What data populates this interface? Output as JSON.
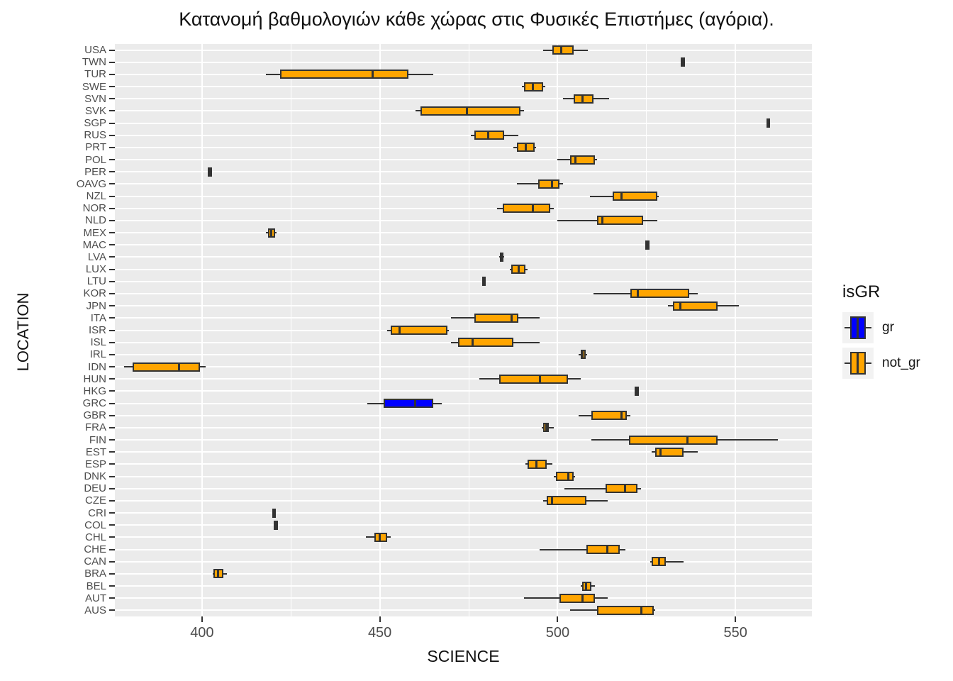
{
  "title": "Κατανομή βαθμολογιών κάθε χώρας στις Φυσικές Επιστήμες (αγόρια).",
  "axes": {
    "x_label": "SCIENCE",
    "y_label": "LOCATION"
  },
  "legend": {
    "title": "isGR",
    "items": [
      {
        "label": "gr",
        "color": "#0000FF"
      },
      {
        "label": "not_gr",
        "color": "#FFA500"
      }
    ]
  },
  "colors": {
    "panel_bg": "#EBEBEB",
    "grid": "#FFFFFF",
    "outline": "#333333",
    "gr": "#0000FF",
    "not_gr": "#FFA500",
    "tick_text": "#4D4D4D"
  },
  "chart_data": {
    "type": "boxplot",
    "orientation": "horizontal",
    "title": "Κατανομή βαθμολογιών κάθε χώρας στις Φυσικές Επιστήμες (αγόρια).",
    "xlabel": "SCIENCE",
    "ylabel": "LOCATION",
    "xlim": [
      375.5,
      571.5
    ],
    "x_ticks": [
      400,
      450,
      500,
      550
    ],
    "x_minor_ticks": [
      425,
      475,
      525
    ],
    "grid": true,
    "legend_position": "right",
    "series_by": "isGR",
    "rows": [
      {
        "location": "USA",
        "group": "not_gr",
        "min": 496,
        "q1": 498.5,
        "median": 501,
        "q3": 504.5,
        "max": 508.5
      },
      {
        "location": "TWN",
        "group": "not_gr",
        "min": 535,
        "q1": 535,
        "median": 535,
        "q3": 535,
        "max": 535
      },
      {
        "location": "TUR",
        "group": "not_gr",
        "min": 418,
        "q1": 422,
        "median": 448,
        "q3": 458,
        "max": 465
      },
      {
        "location": "SWE",
        "group": "not_gr",
        "min": 490,
        "q1": 490.5,
        "median": 493,
        "q3": 496,
        "max": 496.5
      },
      {
        "location": "SVN",
        "group": "not_gr",
        "min": 501.5,
        "q1": 504.5,
        "median": 507,
        "q3": 510,
        "max": 514.5
      },
      {
        "location": "SVK",
        "group": "not_gr",
        "min": 460,
        "q1": 461.5,
        "median": 474.5,
        "q3": 489.5,
        "max": 490.5
      },
      {
        "location": "SGP",
        "group": "not_gr",
        "min": 559,
        "q1": 559,
        "median": 559,
        "q3": 559,
        "max": 559
      },
      {
        "location": "RUS",
        "group": "not_gr",
        "min": 475.5,
        "q1": 476.5,
        "median": 480.5,
        "q3": 485,
        "max": 489
      },
      {
        "location": "PRT",
        "group": "not_gr",
        "min": 487.5,
        "q1": 488.5,
        "median": 491,
        "q3": 493.5,
        "max": 494
      },
      {
        "location": "POL",
        "group": "not_gr",
        "min": 500,
        "q1": 503.5,
        "median": 505,
        "q3": 510.5,
        "max": 511
      },
      {
        "location": "PER",
        "group": "not_gr",
        "min": 402,
        "q1": 402,
        "median": 402,
        "q3": 402,
        "max": 402
      },
      {
        "location": "OAVG",
        "group": "not_gr",
        "min": 488.5,
        "q1": 494.5,
        "median": 498.5,
        "q3": 500.5,
        "max": 501.5
      },
      {
        "location": "NZL",
        "group": "not_gr",
        "min": 509,
        "q1": 515.5,
        "median": 518,
        "q3": 528,
        "max": 528.5
      },
      {
        "location": "NOR",
        "group": "not_gr",
        "min": 483,
        "q1": 484.5,
        "median": 493,
        "q3": 498,
        "max": 499
      },
      {
        "location": "NLD",
        "group": "not_gr",
        "min": 500,
        "q1": 511,
        "median": 512.5,
        "q3": 524,
        "max": 528
      },
      {
        "location": "MEX",
        "group": "not_gr",
        "min": 418,
        "q1": 418.5,
        "median": 419.5,
        "q3": 420.5,
        "max": 421
      },
      {
        "location": "MAC",
        "group": "not_gr",
        "min": 525,
        "q1": 525,
        "median": 525,
        "q3": 525,
        "max": 525
      },
      {
        "location": "LVA",
        "group": "not_gr",
        "min": 483.5,
        "q1": 483.7,
        "median": 484.2,
        "q3": 484.7,
        "max": 485
      },
      {
        "location": "LUX",
        "group": "not_gr",
        "min": 486.5,
        "q1": 487,
        "median": 489,
        "q3": 491,
        "max": 491.5
      },
      {
        "location": "LTU",
        "group": "not_gr",
        "min": 479,
        "q1": 479,
        "median": 479,
        "q3": 479,
        "max": 479
      },
      {
        "location": "KOR",
        "group": "not_gr",
        "min": 510,
        "q1": 520.5,
        "median": 522.5,
        "q3": 537,
        "max": 539.5
      },
      {
        "location": "JPN",
        "group": "not_gr",
        "min": 531,
        "q1": 532.5,
        "median": 534.5,
        "q3": 545,
        "max": 551
      },
      {
        "location": "ITA",
        "group": "not_gr",
        "min": 470,
        "q1": 476.5,
        "median": 487,
        "q3": 489,
        "max": 495
      },
      {
        "location": "ISR",
        "group": "not_gr",
        "min": 452,
        "q1": 453,
        "median": 455.5,
        "q3": 469,
        "max": 469.5
      },
      {
        "location": "ISL",
        "group": "not_gr",
        "min": 470,
        "q1": 472,
        "median": 476,
        "q3": 487.5,
        "max": 495
      },
      {
        "location": "IRL",
        "group": "not_gr",
        "min": 506,
        "q1": 506.5,
        "median": 507,
        "q3": 507.8,
        "max": 508.2
      },
      {
        "location": "IDN",
        "group": "not_gr",
        "min": 378,
        "q1": 380.5,
        "median": 393.5,
        "q3": 399.5,
        "max": 401
      },
      {
        "location": "HUN",
        "group": "not_gr",
        "min": 478,
        "q1": 483.5,
        "median": 495,
        "q3": 503,
        "max": 506.5
      },
      {
        "location": "HKG",
        "group": "not_gr",
        "min": 522,
        "q1": 522,
        "median": 522,
        "q3": 522,
        "max": 522
      },
      {
        "location": "GRC",
        "group": "gr",
        "min": 446.5,
        "q1": 451,
        "median": 460,
        "q3": 465,
        "max": 467.5
      },
      {
        "location": "GBR",
        "group": "not_gr",
        "min": 506,
        "q1": 509.5,
        "median": 518,
        "q3": 519.5,
        "max": 520.5
      },
      {
        "location": "FRA",
        "group": "not_gr",
        "min": 495.5,
        "q1": 496,
        "median": 496.8,
        "q3": 497.5,
        "max": 499
      },
      {
        "location": "FIN",
        "group": "not_gr",
        "min": 509.5,
        "q1": 520,
        "median": 536.5,
        "q3": 545,
        "max": 562
      },
      {
        "location": "EST",
        "group": "not_gr",
        "min": 526.5,
        "q1": 527.5,
        "median": 529,
        "q3": 535.5,
        "max": 539.5
      },
      {
        "location": "ESP",
        "group": "not_gr",
        "min": 491,
        "q1": 491.5,
        "median": 494,
        "q3": 497,
        "max": 498.5
      },
      {
        "location": "DNK",
        "group": "not_gr",
        "min": 499,
        "q1": 499.5,
        "median": 503,
        "q3": 504.5,
        "max": 505
      },
      {
        "location": "DEU",
        "group": "not_gr",
        "min": 502,
        "q1": 513.5,
        "median": 519,
        "q3": 522.5,
        "max": 523.5
      },
      {
        "location": "CZE",
        "group": "not_gr",
        "min": 496,
        "q1": 497,
        "median": 498.5,
        "q3": 508,
        "max": 514
      },
      {
        "location": "CRI",
        "group": "not_gr",
        "min": 420,
        "q1": 420,
        "median": 420,
        "q3": 420,
        "max": 420
      },
      {
        "location": "COL",
        "group": "not_gr",
        "min": 420.5,
        "q1": 420.5,
        "median": 420.5,
        "q3": 420.5,
        "max": 420.5
      },
      {
        "location": "CHL",
        "group": "not_gr",
        "min": 446,
        "q1": 448.5,
        "median": 450,
        "q3": 452,
        "max": 453
      },
      {
        "location": "CHE",
        "group": "not_gr",
        "min": 495,
        "q1": 508,
        "median": 514,
        "q3": 517.5,
        "max": 519
      },
      {
        "location": "CAN",
        "group": "not_gr",
        "min": 526,
        "q1": 526.5,
        "median": 528.5,
        "q3": 530.5,
        "max": 535.5
      },
      {
        "location": "BRA",
        "group": "not_gr",
        "min": 403,
        "q1": 403.3,
        "median": 404.5,
        "q3": 406,
        "max": 407
      },
      {
        "location": "BEL",
        "group": "not_gr",
        "min": 506.5,
        "q1": 506.8,
        "median": 508,
        "q3": 509.5,
        "max": 510.5
      },
      {
        "location": "AUT",
        "group": "not_gr",
        "min": 490.5,
        "q1": 500.5,
        "median": 507,
        "q3": 510.5,
        "max": 514
      },
      {
        "location": "AUS",
        "group": "not_gr",
        "min": 503.5,
        "q1": 511,
        "median": 523.5,
        "q3": 527,
        "max": 527.5
      }
    ]
  }
}
